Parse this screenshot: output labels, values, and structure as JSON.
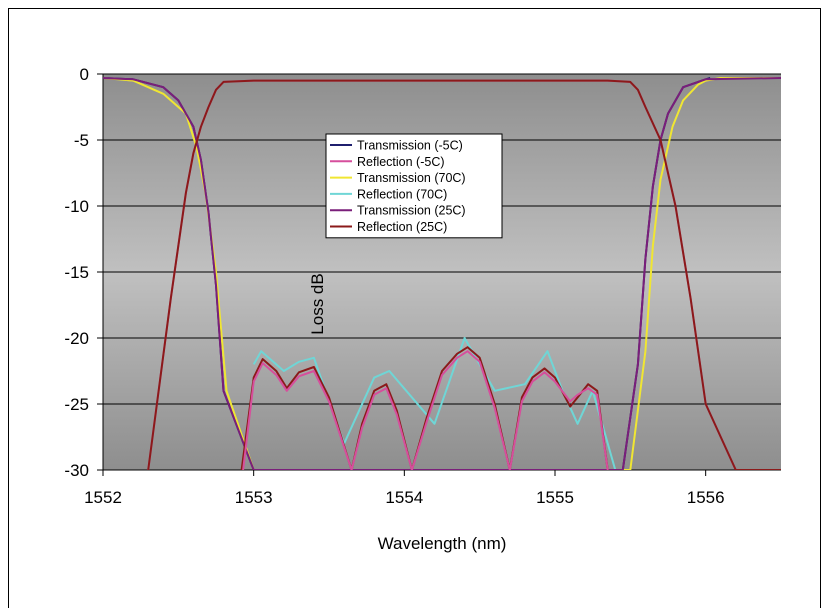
{
  "chart_data": {
    "type": "line",
    "xlabel": "Wavelength (nm)",
    "ylabel": "Loss dB",
    "xlim": [
      1552,
      1556.5
    ],
    "ylim": [
      -30,
      0
    ],
    "x_ticks": [
      "1552",
      "1553",
      "1554",
      "1555",
      "1556"
    ],
    "y_ticks": [
      "0",
      "-5",
      "-10",
      "-15",
      "-20",
      "-25",
      "-30"
    ],
    "grid": true,
    "legend_position": "center",
    "series": [
      {
        "name": "Transmission (-5C)",
        "color": "#1f1f6e",
        "kind": "transmission",
        "x": [
          1552.0,
          1552.2,
          1552.4,
          1552.5,
          1552.6,
          1552.65,
          1552.7,
          1552.75,
          1552.8,
          1553.0,
          1554.0,
          1555.0,
          1555.45,
          1555.55,
          1555.6,
          1555.65,
          1555.7,
          1555.75,
          1555.85,
          1556.0,
          1556.03
        ],
        "y": [
          -0.3,
          -0.4,
          -1.0,
          -2.0,
          -4.0,
          -6.5,
          -10.5,
          -16.0,
          -24.0,
          -30.0,
          -30.0,
          -30.0,
          -30.0,
          -22.0,
          -14.0,
          -8.5,
          -5.0,
          -3.0,
          -1.0,
          -0.4,
          -0.3
        ]
      },
      {
        "name": "Reflection  (-5C)",
        "color": "#d64f9c",
        "kind": "reflection",
        "x": [
          1552.3,
          1552.45,
          1552.55,
          1552.6,
          1552.65,
          1552.7,
          1552.75,
          1552.8,
          1553.0,
          1553.2,
          1553.4,
          1553.6,
          1553.7,
          1553.8,
          1553.9,
          1554.0,
          1554.1,
          1554.2,
          1554.3,
          1554.4,
          1554.5,
          1554.6,
          1554.7,
          1554.8,
          1554.9,
          1555.0,
          1555.1,
          1555.2,
          1555.25,
          1555.3,
          1555.35,
          1555.5,
          1555.55,
          1555.6,
          1555.7,
          1555.8,
          1555.9,
          1556.0,
          1556.2,
          1556.5
        ],
        "y": [
          -30.0,
          -17.0,
          -9.0,
          -6.0,
          -4.0,
          -2.5,
          -1.2,
          -0.6,
          -0.5,
          -0.5,
          -0.5,
          -0.5,
          -0.5,
          -0.5,
          -0.5,
          -0.5,
          -0.5,
          -0.5,
          -0.5,
          -0.5,
          -0.5,
          -0.5,
          -0.5,
          -0.5,
          -0.5,
          -0.5,
          -0.5,
          -0.5,
          -0.5,
          -0.5,
          -0.5,
          -0.6,
          -1.2,
          -2.5,
          -5.0,
          -10.0,
          -17.0,
          -25.0,
          -30.0,
          -30.0
        ]
      },
      {
        "name": "Transmission  (70C)",
        "color": "#f0e632",
        "kind": "transmission",
        "x": [
          1552.0,
          1552.2,
          1552.4,
          1552.55,
          1552.62,
          1552.68,
          1552.75,
          1552.82,
          1553.0,
          1554.0,
          1555.0,
          1555.5,
          1555.6,
          1555.65,
          1555.7,
          1555.78,
          1555.85,
          1555.95,
          1556.0,
          1556.1,
          1556.5
        ],
        "y": [
          -0.3,
          -0.5,
          -1.5,
          -3.0,
          -5.5,
          -9.0,
          -15.0,
          -24.0,
          -30.0,
          -30.0,
          -30.0,
          -30.0,
          -21.0,
          -13.0,
          -8.0,
          -4.0,
          -2.0,
          -0.8,
          -0.5,
          -0.3,
          -0.3
        ]
      },
      {
        "name": "Reflection  (70C)",
        "color": "#6fd6d6",
        "kind": "reflection",
        "x": [
          1553.0,
          1553.05,
          1553.2,
          1553.3,
          1553.4,
          1553.6,
          1553.8,
          1553.9,
          1554.2,
          1554.4,
          1554.6,
          1554.8,
          1554.95,
          1555.05,
          1555.15,
          1555.25,
          1555.4
        ],
        "y": [
          -22.0,
          -21.0,
          -22.5,
          -21.8,
          -21.5,
          -28.0,
          -23.0,
          -22.5,
          -26.5,
          -20.0,
          -24.0,
          -23.5,
          -21.0,
          -24.0,
          -26.5,
          -24.0,
          -30.0
        ]
      },
      {
        "name": "Transmission (25C)",
        "color": "#7a1f7a",
        "kind": "transmission",
        "x": [
          1552.0,
          1552.2,
          1552.4,
          1552.5,
          1552.6,
          1552.65,
          1552.7,
          1552.75,
          1552.8,
          1553.0,
          1554.0,
          1555.0,
          1555.45,
          1555.55,
          1555.6,
          1555.65,
          1555.7,
          1555.75,
          1555.85,
          1556.0,
          1556.5
        ],
        "y": [
          -0.3,
          -0.4,
          -1.0,
          -2.0,
          -4.0,
          -6.5,
          -10.5,
          -16.0,
          -24.0,
          -30.0,
          -30.0,
          -30.0,
          -30.0,
          -22.0,
          -14.0,
          -8.5,
          -5.0,
          -3.0,
          -1.0,
          -0.4,
          -0.3
        ]
      },
      {
        "name": "Reflection (25C)",
        "color": "#8b1a1a",
        "kind": "reflection",
        "x": [
          1552.3,
          1552.45,
          1552.55,
          1552.6,
          1552.65,
          1552.7,
          1552.75,
          1552.8,
          1553.0,
          1553.06,
          1553.15,
          1553.22,
          1553.3,
          1553.4,
          1553.5,
          1553.65,
          1553.72,
          1553.8,
          1553.88,
          1553.95,
          1554.05,
          1554.15,
          1554.25,
          1554.35,
          1554.42,
          1554.5,
          1554.6,
          1554.7,
          1554.78,
          1554.85,
          1554.93,
          1555.0,
          1555.1,
          1555.15,
          1555.22,
          1555.28,
          1555.35,
          1555.5,
          1555.55,
          1555.6,
          1555.7,
          1555.8,
          1555.9,
          1556.0,
          1556.2,
          1556.5
        ],
        "y": [
          -30.0,
          -17.0,
          -9.0,
          -6.0,
          -4.0,
          -2.5,
          -1.2,
          -0.6,
          -0.5,
          -0.5,
          -0.5,
          -0.5,
          -0.5,
          -0.5,
          -0.5,
          -0.5,
          -0.5,
          -0.5,
          -0.5,
          -0.5,
          -0.5,
          -0.5,
          -0.5,
          -0.5,
          -0.5,
          -0.5,
          -0.5,
          -0.5,
          -0.5,
          -0.5,
          -0.5,
          -0.5,
          -0.5,
          -0.5,
          -0.5,
          -0.5,
          -0.5,
          -0.6,
          -1.2,
          -2.5,
          -5.0,
          -10.0,
          -17.0,
          -25.0,
          -30.0,
          -30.0
        ]
      },
      {
        "name": "",
        "color": "#8b1a1a",
        "kind": "ripple",
        "x": [
          1552.92,
          1553.0,
          1553.06,
          1553.15,
          1553.22,
          1553.3,
          1553.4,
          1553.5,
          1553.65,
          1553.72,
          1553.8,
          1553.88,
          1553.95,
          1554.05,
          1554.15,
          1554.25,
          1554.35,
          1554.42,
          1554.5,
          1554.6,
          1554.7,
          1554.78,
          1554.85,
          1554.93,
          1555.0,
          1555.1,
          1555.15,
          1555.22,
          1555.28,
          1555.35
        ],
        "y": [
          -30.0,
          -23.0,
          -21.6,
          -22.5,
          -23.8,
          -22.6,
          -22.2,
          -24.5,
          -30.0,
          -26.5,
          -24.0,
          -23.5,
          -25.5,
          -30.0,
          -26.0,
          -22.5,
          -21.2,
          -20.7,
          -21.5,
          -25.0,
          -30.0,
          -24.5,
          -23.0,
          -22.3,
          -23.0,
          -25.2,
          -24.5,
          -23.5,
          -24.0,
          -30.0
        ]
      },
      {
        "name": "",
        "color": "#d64f9c",
        "kind": "ripple",
        "x": [
          1552.93,
          1553.0,
          1553.06,
          1553.15,
          1553.22,
          1553.3,
          1553.4,
          1553.5,
          1553.65,
          1553.72,
          1553.8,
          1553.88,
          1553.95,
          1554.05,
          1554.15,
          1554.25,
          1554.35,
          1554.42,
          1554.5,
          1554.6,
          1554.7,
          1554.78,
          1554.85,
          1554.93,
          1555.0,
          1555.1,
          1555.15,
          1555.22,
          1555.28,
          1555.35
        ],
        "y": [
          -30.0,
          -23.3,
          -21.9,
          -22.8,
          -24.0,
          -22.9,
          -22.5,
          -24.8,
          -30.0,
          -26.8,
          -24.3,
          -23.8,
          -25.8,
          -30.0,
          -26.3,
          -22.8,
          -21.5,
          -21.0,
          -21.8,
          -25.3,
          -30.0,
          -24.8,
          -23.3,
          -22.6,
          -23.3,
          -24.8,
          -24.3,
          -23.8,
          -24.3,
          -30.0
        ]
      }
    ]
  }
}
